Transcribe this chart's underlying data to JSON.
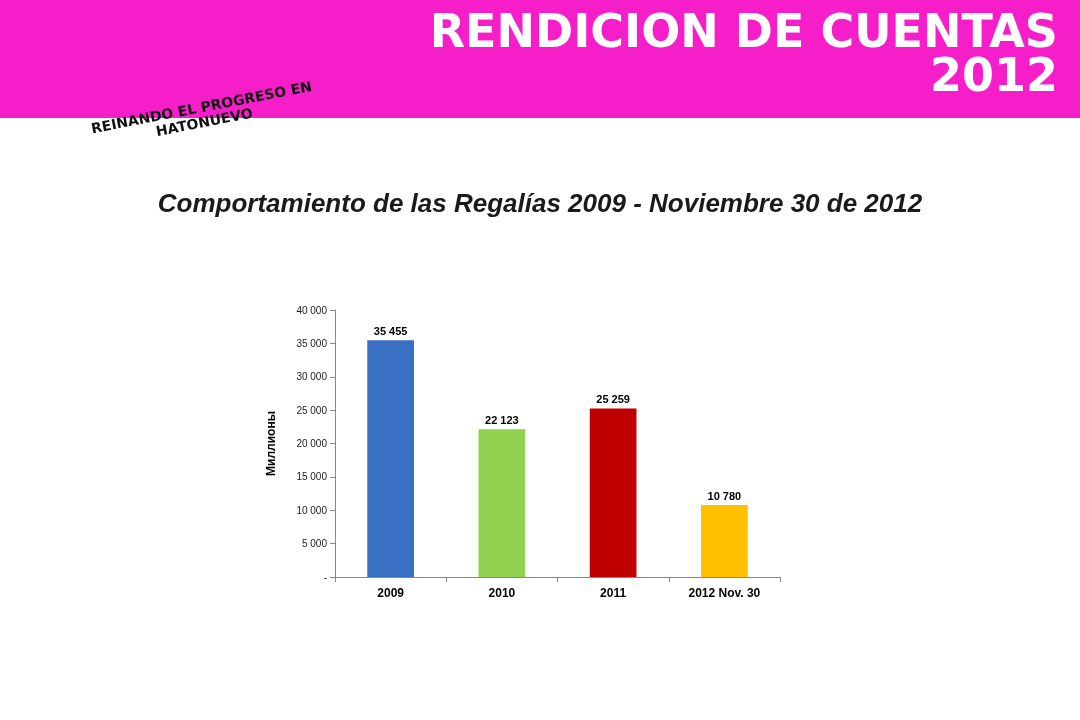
{
  "chart_data": {
    "type": "bar",
    "title": "Comportamiento de las Regalías 2009 - Noviembre 30 de 2012",
    "ylabel": "Миллионы",
    "annotations": [
      "RENDICION DE CUENTAS",
      "2012",
      "REINANDO EL PROGRESO EN HATONUEVO"
    ],
    "categories": [
      "2009",
      "2010",
      "2011",
      "2012 Nov. 30"
    ],
    "values": [
      35455,
      22123,
      25259,
      10780
    ],
    "value_labels": [
      "35 455",
      "22 123",
      "25 259",
      "10 780"
    ],
    "colors": [
      "#3a70c4",
      "#92d050",
      "#c00000",
      "#ffc000"
    ],
    "ylim": [
      0,
      40000
    ],
    "yticks": [
      {
        "value": 0,
        "label": "-"
      },
      {
        "value": 5000,
        "label": "5 000"
      },
      {
        "value": 10000,
        "label": "10 000"
      },
      {
        "value": 15000,
        "label": "15 000"
      },
      {
        "value": 20000,
        "label": "20 000"
      },
      {
        "value": 25000,
        "label": "25 000"
      },
      {
        "value": 30000,
        "label": "30 000"
      },
      {
        "value": 35000,
        "label": "35 000"
      },
      {
        "value": 40000,
        "label": "40 000"
      }
    ],
    "grid": false
  }
}
